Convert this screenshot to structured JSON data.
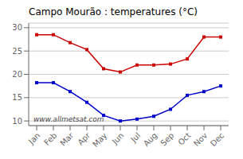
{
  "chart_data": {
    "type": "line",
    "title": "Campo Mourão : temperatures (°C)",
    "categories": [
      "Jan",
      "Feb",
      "Mar",
      "Apr",
      "May",
      "Jun",
      "Jul",
      "Aug",
      "Sep",
      "Oct",
      "Nov",
      "Dec"
    ],
    "series": [
      {
        "color": "#cc0000",
        "marker": "square",
        "values": [
          28.5,
          28.5,
          26.8,
          25.3,
          21.2,
          20.5,
          22.0,
          22.0,
          22.2,
          23.3,
          28.0,
          28.0
        ]
      },
      {
        "color": "#0000cc",
        "marker": "square",
        "values": [
          18.2,
          18.2,
          16.3,
          14.0,
          11.2,
          10.0,
          10.4,
          11.0,
          12.5,
          15.5,
          16.3,
          17.5
        ]
      }
    ],
    "ylim": [
      9,
      31
    ],
    "yticks": [
      10,
      15,
      20,
      25,
      30
    ],
    "grid": true,
    "annotations": [
      "www.allmetsat.com"
    ]
  }
}
